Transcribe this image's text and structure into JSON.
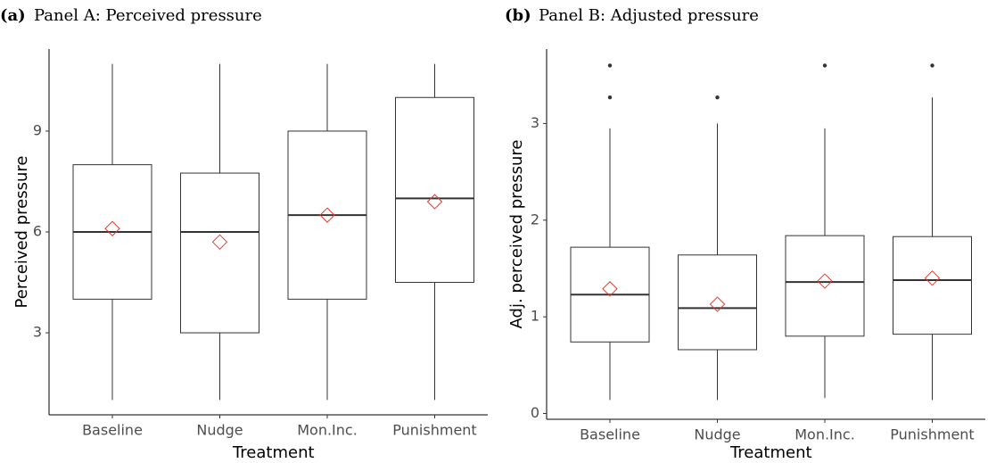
{
  "chart_data": [
    {
      "type": "box",
      "panel_label": "(a)",
      "title": "Panel A: Perceived pressure",
      "x_label": "Treatment",
      "y_label": "Perceived pressure",
      "categories": [
        "Baseline",
        "Nudge",
        "Mon.Inc.",
        "Punishment"
      ],
      "boxes": [
        {
          "whisker_low": 1,
          "q1": 4,
          "median": 6,
          "q3": 8,
          "whisker_high": 11,
          "mean": 6.1,
          "outliers": []
        },
        {
          "whisker_low": 1,
          "q1": 3,
          "median": 6,
          "q3": 7.75,
          "whisker_high": 11,
          "mean": 5.7,
          "outliers": []
        },
        {
          "whisker_low": 1,
          "q1": 4,
          "median": 6.5,
          "q3": 9,
          "whisker_high": 11,
          "mean": 6.5,
          "outliers": []
        },
        {
          "whisker_low": 1,
          "q1": 4.5,
          "median": 7,
          "q3": 10,
          "whisker_high": 11,
          "mean": 6.9,
          "outliers": []
        }
      ],
      "ylim": [
        0.56,
        11.44
      ],
      "yticks": [
        3,
        6,
        9
      ],
      "box_color": "#333333",
      "mean_color": "#e8382d"
    },
    {
      "type": "box",
      "panel_label": "(b)",
      "title": "Panel B: Adjusted pressure",
      "x_label": "Treatment",
      "y_label": "Adj. perceived pressure",
      "categories": [
        "Baseline",
        "Nudge",
        "Mon.Inc.",
        "Punishment"
      ],
      "boxes": [
        {
          "whisker_low": 0.14,
          "q1": 0.74,
          "median": 1.23,
          "q3": 1.72,
          "whisker_high": 2.95,
          "mean": 1.29,
          "outliers": [
            3.27,
            3.6
          ]
        },
        {
          "whisker_low": 0.14,
          "q1": 0.66,
          "median": 1.09,
          "q3": 1.64,
          "whisker_high": 3.0,
          "mean": 1.13,
          "outliers": [
            3.27
          ]
        },
        {
          "whisker_low": 0.16,
          "q1": 0.8,
          "median": 1.36,
          "q3": 1.84,
          "whisker_high": 2.95,
          "mean": 1.37,
          "outliers": [
            3.6
          ]
        },
        {
          "whisker_low": 0.14,
          "q1": 0.82,
          "median": 1.38,
          "q3": 1.83,
          "whisker_high": 3.27,
          "mean": 1.4,
          "outliers": [
            3.6
          ]
        }
      ],
      "ylim": [
        -0.06,
        3.77
      ],
      "yticks": [
        0,
        1,
        2,
        3
      ],
      "box_color": "#333333",
      "mean_color": "#e8382d"
    }
  ]
}
